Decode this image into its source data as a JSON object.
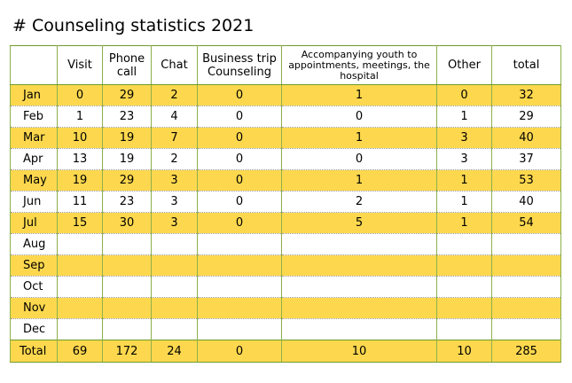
{
  "title": "# Counseling statistics 2021",
  "table": {
    "headers": [
      "",
      "Visit",
      "Phone call",
      "Chat",
      "Business trip Counseling",
      "Accompanying youth to appointments, meetings, the hospital",
      "Other",
      "total"
    ],
    "rows": [
      [
        "Jan",
        "0",
        "29",
        "2",
        "0",
        "1",
        "0",
        "32"
      ],
      [
        "Feb",
        "1",
        "23",
        "4",
        "0",
        "0",
        "1",
        "29"
      ],
      [
        "Mar",
        "10",
        "19",
        "7",
        "0",
        "1",
        "3",
        "40"
      ],
      [
        "Apr",
        "13",
        "19",
        "2",
        "0",
        "0",
        "3",
        "37"
      ],
      [
        "May",
        "19",
        "29",
        "3",
        "0",
        "1",
        "1",
        "53"
      ],
      [
        "Jun",
        "11",
        "23",
        "3",
        "0",
        "2",
        "1",
        "40"
      ],
      [
        "Jul",
        "15",
        "30",
        "3",
        "0",
        "5",
        "1",
        "54"
      ],
      [
        "Aug",
        "",
        "",
        "",
        "",
        "",
        "",
        ""
      ],
      [
        "Sep",
        "",
        "",
        "",
        "",
        "",
        "",
        ""
      ],
      [
        "Oct",
        "",
        "",
        "",
        "",
        "",
        "",
        ""
      ],
      [
        "Nov",
        "",
        "",
        "",
        "",
        "",
        "",
        ""
      ],
      [
        "Dec",
        "",
        "",
        "",
        "",
        "",
        "",
        ""
      ]
    ],
    "totals": [
      "Total",
      "69",
      "172",
      "24",
      "0",
      "10",
      "10",
      "285"
    ]
  },
  "colors": {
    "stripe": "#fdd84e",
    "border": "#8db04a"
  }
}
